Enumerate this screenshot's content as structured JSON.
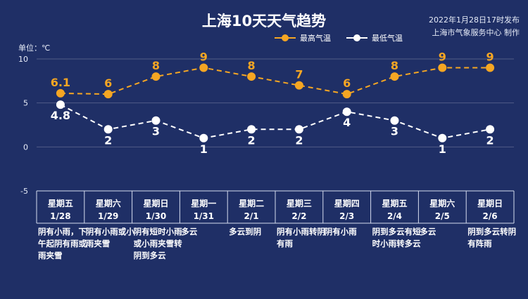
{
  "header": {
    "title": "上海10天天气趋势",
    "issue_time": "2022年1月28日17时发布",
    "issuer": "上海市气象服务中心 制作",
    "unit": "单位：℃"
  },
  "chart_data": {
    "type": "line",
    "title": "上海10天天气趋势",
    "ylabel": "单位：℃",
    "ylim": [
      -5,
      10
    ],
    "yticks": [
      -5,
      0,
      5,
      10
    ],
    "grid": true,
    "legend_position": "top-right",
    "categories": [
      "星期五 1/28",
      "星期六 1/29",
      "星期日 1/30",
      "星期一 1/31",
      "星期二 2/1",
      "星期三 2/2",
      "星期四 2/3",
      "星期五 2/4",
      "星期六 2/5",
      "星期日 2/6"
    ],
    "series": [
      {
        "name": "最高气温",
        "color": "#f5a623",
        "values": [
          6.1,
          6,
          8,
          9,
          8,
          7,
          6,
          8,
          9,
          9
        ]
      },
      {
        "name": "最低气温",
        "color": "#ffffff",
        "values": [
          4.8,
          2,
          3,
          1,
          2,
          2,
          4,
          3,
          1,
          2
        ]
      }
    ]
  },
  "days": [
    {
      "weekday": "星期五",
      "date": "1/28",
      "desc": "阴有小雨，下午起阴有雨或雨夹雪"
    },
    {
      "weekday": "星期六",
      "date": "1/29",
      "desc": "阴有小雨或小雨夹雪"
    },
    {
      "weekday": "星期日",
      "date": "1/30",
      "desc": "阴有短时小雨或小雨夹雪转阴到多云"
    },
    {
      "weekday": "星期一",
      "date": "1/31",
      "desc": "多云"
    },
    {
      "weekday": "星期二",
      "date": "2/1",
      "desc": "多云到阴"
    },
    {
      "weekday": "星期三",
      "date": "2/2",
      "desc": "阴有小雨转阴有雨"
    },
    {
      "weekday": "星期四",
      "date": "2/3",
      "desc": "阴有小雨"
    },
    {
      "weekday": "星期五",
      "date": "2/4",
      "desc": "阴到多云有短时小雨转多云"
    },
    {
      "weekday": "星期六",
      "date": "2/5",
      "desc": "多云"
    },
    {
      "weekday": "星期日",
      "date": "2/6",
      "desc": "阴到多云转阴有阵雨"
    }
  ]
}
